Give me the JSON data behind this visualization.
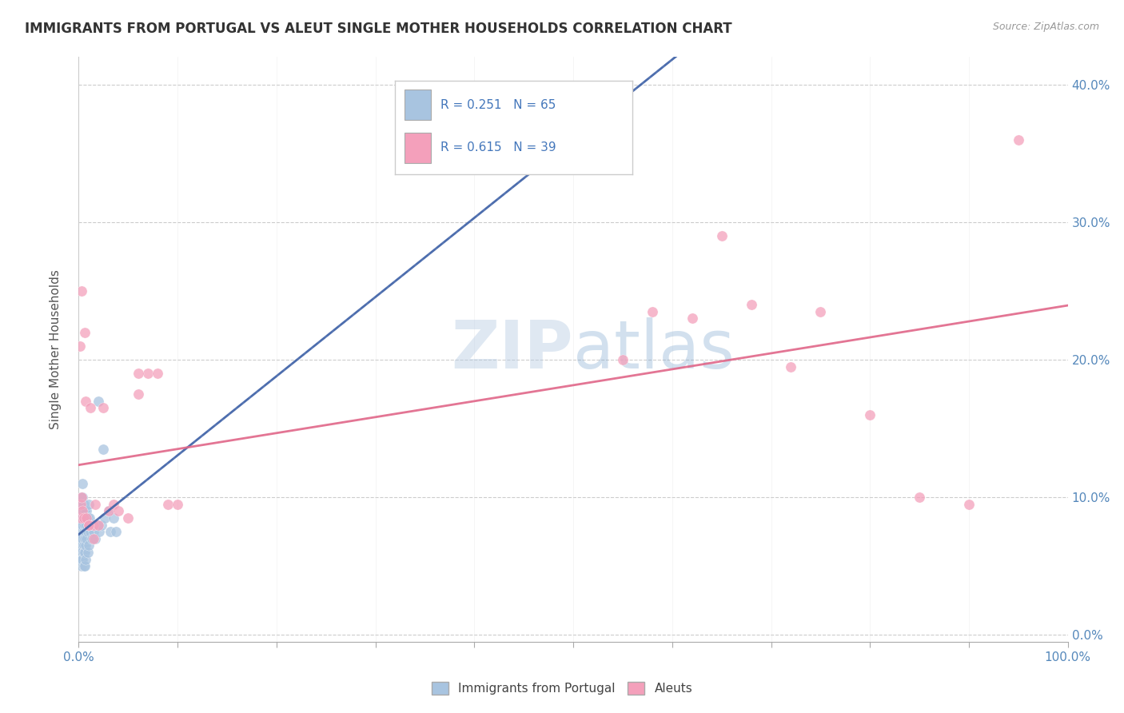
{
  "title": "IMMIGRANTS FROM PORTUGAL VS ALEUT SINGLE MOTHER HOUSEHOLDS CORRELATION CHART",
  "source": "Source: ZipAtlas.com",
  "ylabel": "Single Mother Households",
  "legend_label1": "Immigrants from Portugal",
  "legend_label2": "Aleuts",
  "R1": 0.251,
  "N1": 65,
  "R2": 0.615,
  "N2": 39,
  "xlim": [
    0.0,
    1.0
  ],
  "ylim": [
    -0.005,
    0.42
  ],
  "color_portugal": "#a8c4e0",
  "color_aleut": "#f4a0bb",
  "color_line_portugal": "#4466aa",
  "color_line_aleut": "#e06688",
  "watermark": "ZIPatlas",
  "port_x": [
    0.001,
    0.001,
    0.001,
    0.001,
    0.001,
    0.002,
    0.002,
    0.002,
    0.002,
    0.002,
    0.002,
    0.003,
    0.003,
    0.003,
    0.003,
    0.003,
    0.003,
    0.003,
    0.003,
    0.004,
    0.004,
    0.004,
    0.004,
    0.004,
    0.004,
    0.005,
    0.005,
    0.005,
    0.005,
    0.005,
    0.005,
    0.006,
    0.006,
    0.006,
    0.006,
    0.006,
    0.007,
    0.007,
    0.007,
    0.007,
    0.008,
    0.008,
    0.008,
    0.009,
    0.009,
    0.009,
    0.01,
    0.01,
    0.01,
    0.011,
    0.012,
    0.013,
    0.015,
    0.016,
    0.017,
    0.019,
    0.021,
    0.023,
    0.026,
    0.03,
    0.032,
    0.035,
    0.038,
    0.02,
    0.025
  ],
  "port_y": [
    0.075,
    0.08,
    0.085,
    0.07,
    0.065,
    0.09,
    0.095,
    0.08,
    0.07,
    0.06,
    0.055,
    0.1,
    0.095,
    0.085,
    0.075,
    0.065,
    0.06,
    0.055,
    0.05,
    0.11,
    0.1,
    0.09,
    0.08,
    0.07,
    0.055,
    0.095,
    0.085,
    0.075,
    0.065,
    0.06,
    0.05,
    0.09,
    0.08,
    0.07,
    0.06,
    0.05,
    0.085,
    0.075,
    0.065,
    0.055,
    0.09,
    0.08,
    0.07,
    0.085,
    0.075,
    0.06,
    0.095,
    0.08,
    0.065,
    0.085,
    0.075,
    0.07,
    0.075,
    0.08,
    0.07,
    0.08,
    0.075,
    0.08,
    0.085,
    0.09,
    0.075,
    0.085,
    0.075,
    0.17,
    0.135
  ],
  "aleut_x": [
    0.001,
    0.002,
    0.002,
    0.003,
    0.003,
    0.004,
    0.005,
    0.006,
    0.007,
    0.008,
    0.01,
    0.012,
    0.015,
    0.017,
    0.02,
    0.025,
    0.03,
    0.035,
    0.04,
    0.05,
    0.06,
    0.07,
    0.08,
    0.09,
    0.1,
    0.55,
    0.58,
    0.62,
    0.65,
    0.68,
    0.72,
    0.75,
    0.8,
    0.85,
    0.9,
    0.01,
    0.015,
    0.06,
    0.95
  ],
  "aleut_y": [
    0.21,
    0.085,
    0.095,
    0.1,
    0.25,
    0.09,
    0.085,
    0.22,
    0.17,
    0.085,
    0.08,
    0.165,
    0.08,
    0.095,
    0.08,
    0.165,
    0.09,
    0.095,
    0.09,
    0.085,
    0.175,
    0.19,
    0.19,
    0.095,
    0.095,
    0.2,
    0.235,
    0.23,
    0.29,
    0.24,
    0.195,
    0.235,
    0.16,
    0.1,
    0.095,
    0.08,
    0.07,
    0.19,
    0.36
  ]
}
